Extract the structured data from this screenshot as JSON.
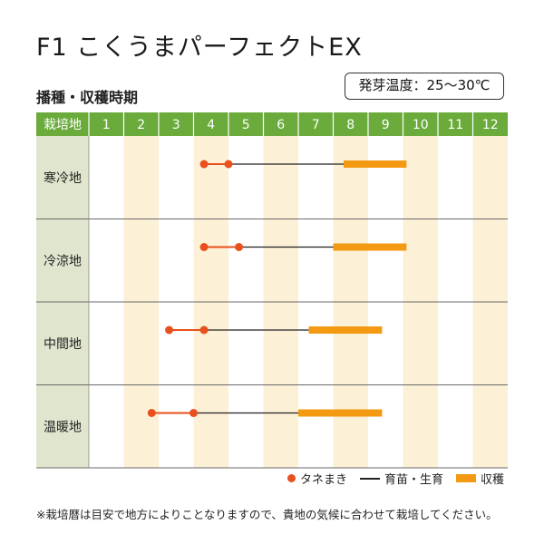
{
  "title": "F1 こくうまパーフェクトEX",
  "temperature_label": "発芽温度：25～30℃",
  "subtitle": "播種・収穫時期",
  "header_label": "栽培地",
  "months": [
    "1",
    "2",
    "3",
    "4",
    "5",
    "6",
    "7",
    "8",
    "9",
    "10",
    "11",
    "12"
  ],
  "legend": {
    "sowing": "タネまき",
    "growing": "育苗・生育",
    "harvest": "収穫"
  },
  "note": "※栽培暦は目安で地方によりことなりますので、貴地の気候に合わせて栽培してください。",
  "colors": {
    "header_bg": "#6aab3c",
    "region_bg": "#dfe6cd",
    "stripe": "#fcf0d6",
    "sowing": "#e8501d",
    "harvest": "#f39a12"
  },
  "chart_data": {
    "type": "table",
    "x_unit": "month",
    "regions": [
      {
        "name": "寒冷地",
        "sowing": [
          3.3,
          4.0
        ],
        "growing": [
          4.0,
          7.3
        ],
        "harvest": [
          7.3,
          9.1
        ]
      },
      {
        "name": "冷涼地",
        "sowing": [
          3.3,
          4.3
        ],
        "growing": [
          4.3,
          7.0
        ],
        "harvest": [
          7.0,
          9.1
        ]
      },
      {
        "name": "中間地",
        "sowing": [
          2.3,
          3.3
        ],
        "growing": [
          3.3,
          6.3
        ],
        "harvest": [
          6.3,
          8.4
        ]
      },
      {
        "name": "温暖地",
        "sowing": [
          1.8,
          3.0
        ],
        "growing": [
          3.0,
          6.0
        ],
        "harvest": [
          6.0,
          8.4
        ]
      }
    ]
  }
}
